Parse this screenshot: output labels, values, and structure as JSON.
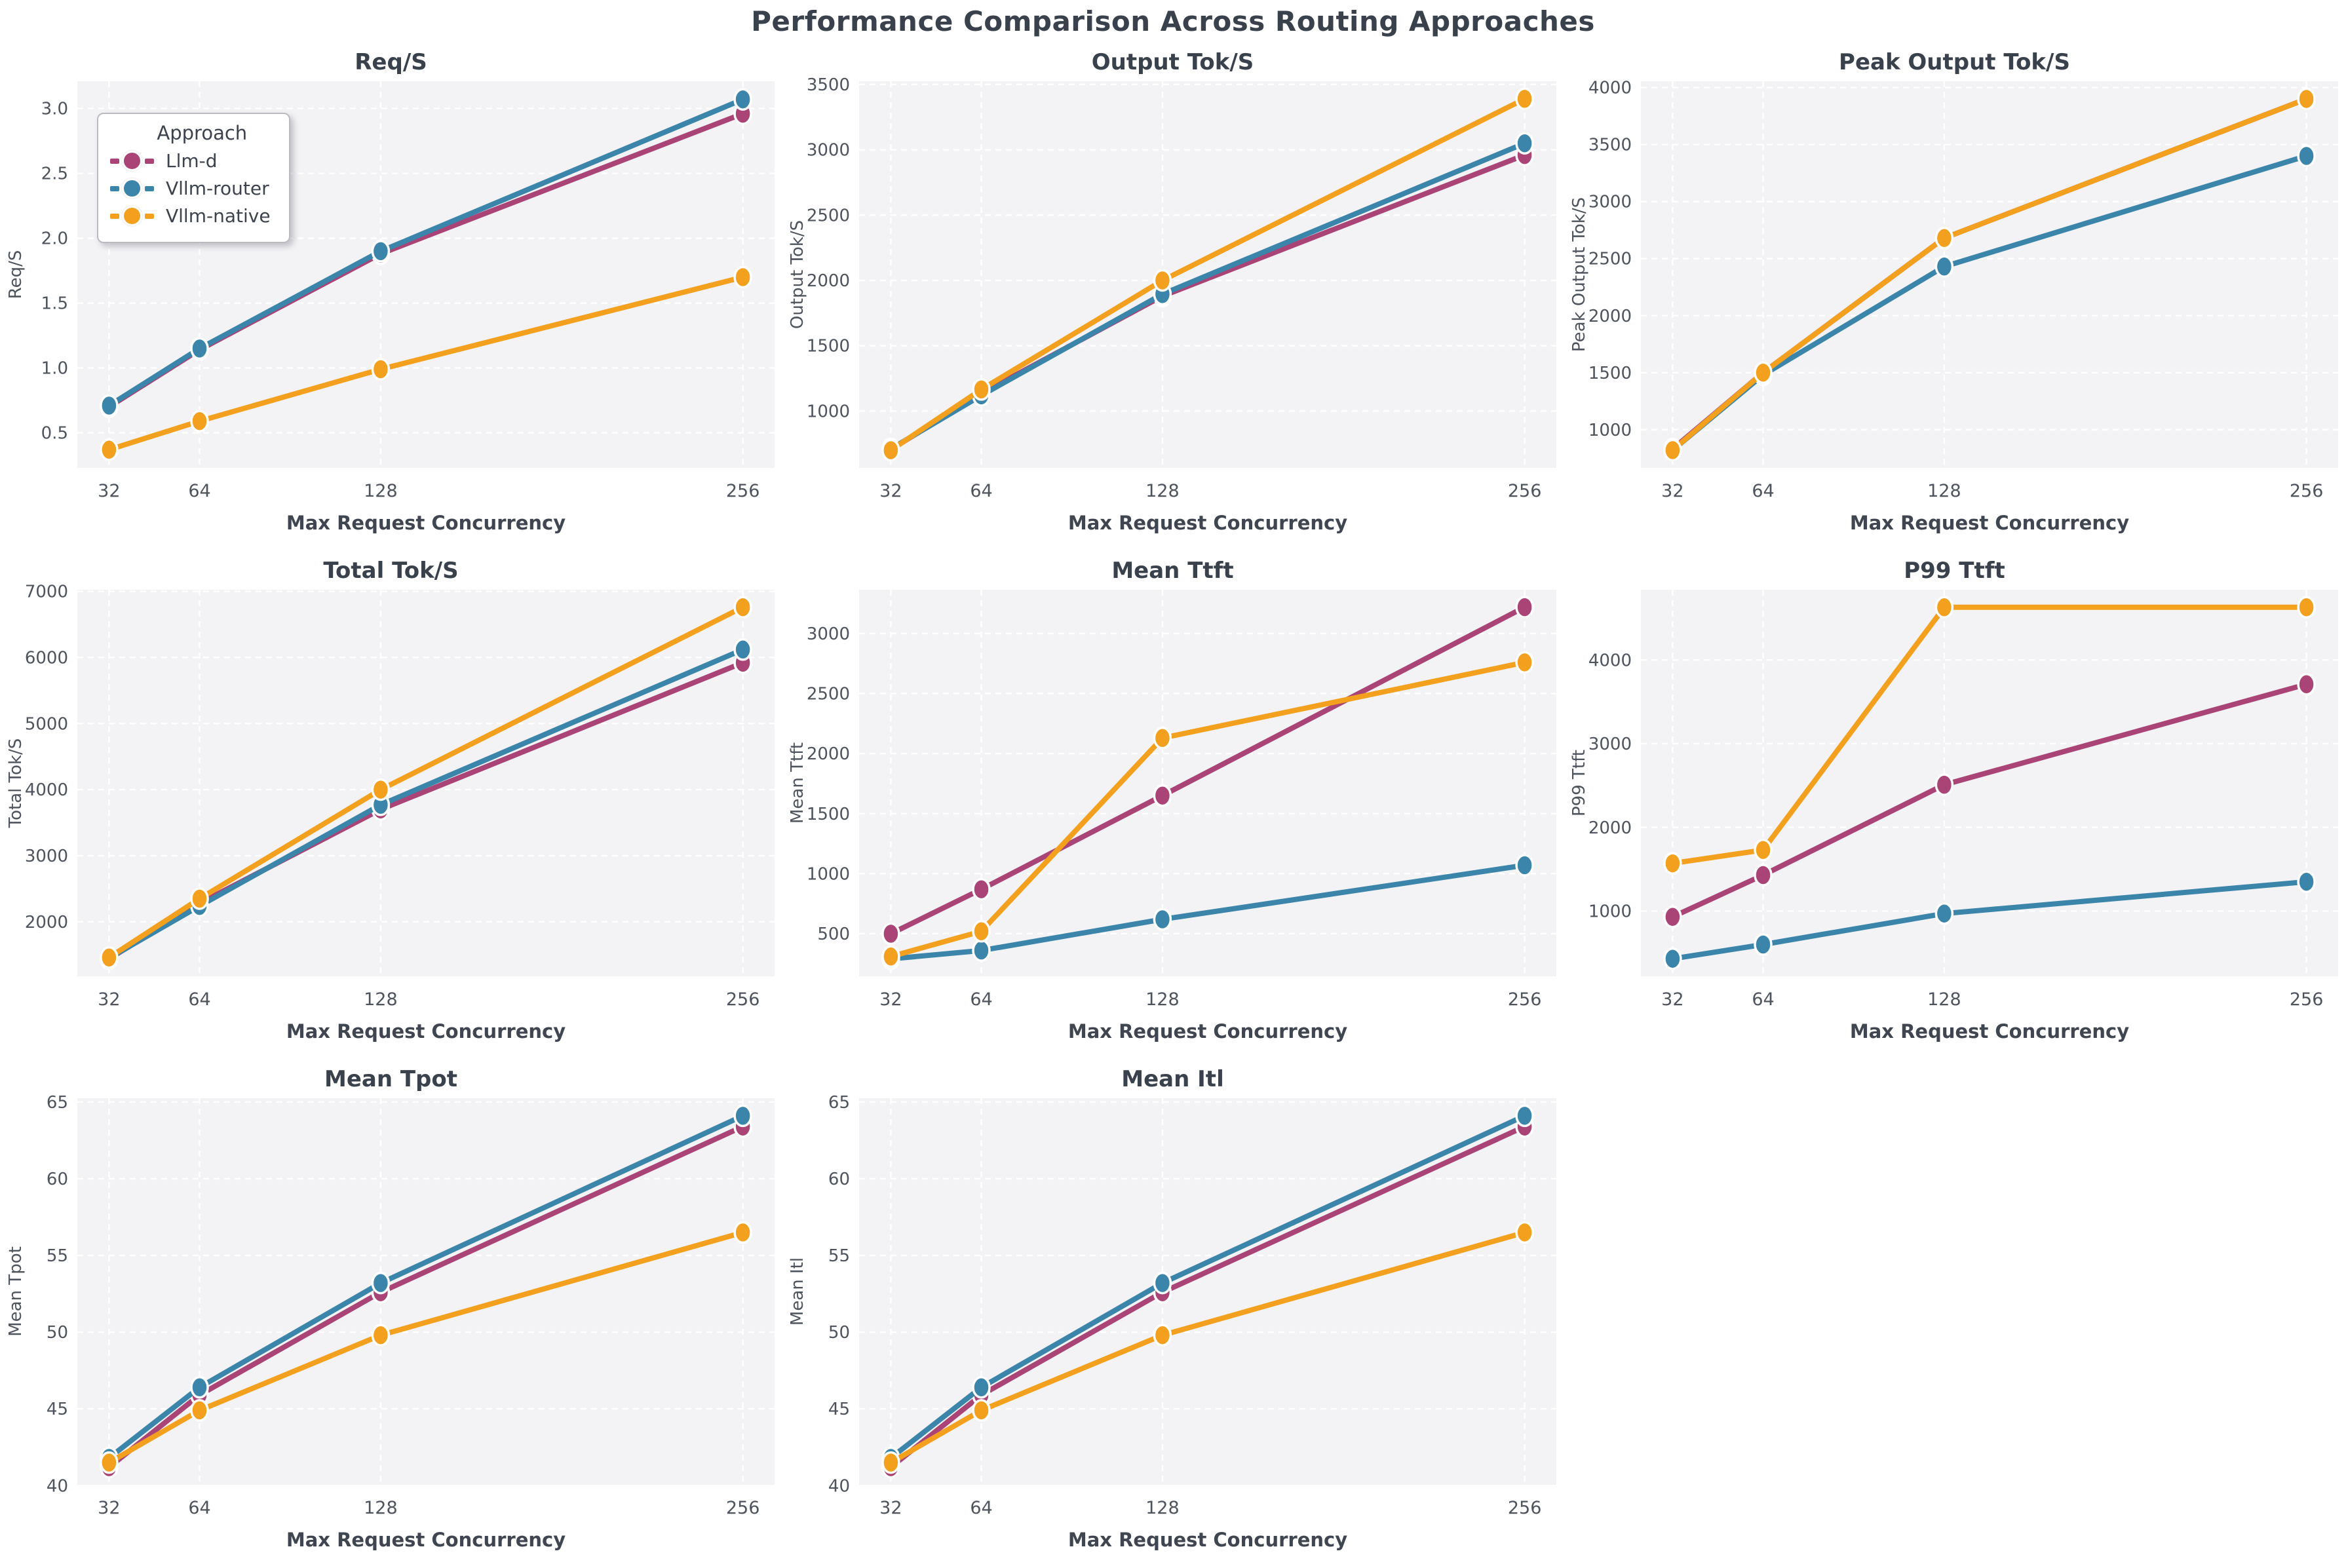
{
  "page": {
    "title": "Performance Comparison Across Routing Approaches"
  },
  "legend": {
    "title": "Approach",
    "entries": [
      {
        "name": "llm_d",
        "label": "Llm-d",
        "color": "#aa4477"
      },
      {
        "name": "vllm_router",
        "label": "Vllm-router",
        "color": "#3b85ab"
      },
      {
        "name": "vllm_native",
        "label": "Vllm-native",
        "color": "#f4a01f"
      }
    ]
  },
  "axes_shared": {
    "xlabel": "Max Request Concurrency",
    "x": [
      32,
      64,
      128,
      256
    ],
    "xtick_labels": [
      "32",
      "64",
      "128",
      "256"
    ],
    "xlim": [
      20.8,
      267.2
    ],
    "plot_bg": "#f3f3f5",
    "grid_color": "#ffffff"
  },
  "chart_data": [
    {
      "type": "line",
      "title": "Req/S",
      "ylabel": "Req/S",
      "xlabel": "Max Request Concurrency",
      "ylim": [
        0.23,
        3.21
      ],
      "yticks": [
        0.5,
        1.0,
        1.5,
        2.0,
        2.5,
        3.0
      ],
      "ytick_labels": [
        "0.5",
        "1.0",
        "1.5",
        "2.0",
        "2.5",
        "3.0"
      ],
      "series": [
        {
          "name": "llm_d",
          "values": [
            0.7,
            1.14,
            1.88,
            2.96
          ]
        },
        {
          "name": "vllm_router",
          "values": [
            0.71,
            1.15,
            1.9,
            3.07
          ]
        },
        {
          "name": "vllm_native",
          "values": [
            0.37,
            0.59,
            0.99,
            1.7
          ]
        }
      ],
      "has_legend": true
    },
    {
      "type": "line",
      "title": "Output Tok/S",
      "ylabel": "Output Tok/S",
      "xlabel": "Max Request Concurrency",
      "ylim": [
        565,
        3525
      ],
      "yticks": [
        1000,
        1500,
        2000,
        2500,
        3000,
        3500
      ],
      "series": [
        {
          "name": "llm_d",
          "values": [
            705,
            1135,
            1880,
            2960
          ]
        },
        {
          "name": "vllm_router",
          "values": [
            710,
            1120,
            1895,
            3050
          ]
        },
        {
          "name": "vllm_native",
          "values": [
            700,
            1165,
            2000,
            3390
          ]
        }
      ],
      "has_legend": false
    },
    {
      "type": "line",
      "title": "Peak Output Tok/S",
      "ylabel": "Peak Output Tok/S",
      "xlabel": "Max Request Concurrency",
      "ylim": [
        665,
        4055
      ],
      "yticks": [
        1000,
        1500,
        2000,
        2500,
        3000,
        3500,
        4000
      ],
      "series": [
        {
          "name": "llm_d",
          "values": [
            830,
            1500,
            2680,
            3900
          ]
        },
        {
          "name": "vllm_router",
          "values": [
            820,
            1480,
            2430,
            3400
          ]
        },
        {
          "name": "vllm_native",
          "values": [
            820,
            1500,
            2680,
            3900
          ]
        }
      ],
      "has_legend": false
    },
    {
      "type": "line",
      "title": "Total Tok/S",
      "ylabel": "Total Tok/S",
      "xlabel": "Max Request Concurrency",
      "ylim": [
        1175,
        7025
      ],
      "yticks": [
        2000,
        3000,
        4000,
        5000,
        6000,
        7000
      ],
      "series": [
        {
          "name": "llm_d",
          "values": [
            1440,
            2280,
            3700,
            5920
          ]
        },
        {
          "name": "vllm_router",
          "values": [
            1450,
            2240,
            3770,
            6120
          ]
        },
        {
          "name": "vllm_native",
          "values": [
            1460,
            2350,
            4000,
            6760
          ]
        }
      ],
      "has_legend": false
    },
    {
      "type": "line",
      "title": "Mean Ttft",
      "ylabel": "Mean Ttft",
      "xlabel": "Max Request Concurrency",
      "ylim": [
        145,
        3365
      ],
      "yticks": [
        500,
        1000,
        1500,
        2000,
        2500,
        3000
      ],
      "series": [
        {
          "name": "llm_d",
          "values": [
            500,
            870,
            1650,
            3220
          ]
        },
        {
          "name": "vllm_router",
          "values": [
            290,
            360,
            620,
            1070
          ]
        },
        {
          "name": "vllm_native",
          "values": [
            310,
            520,
            2130,
            2760
          ]
        }
      ],
      "has_legend": false
    },
    {
      "type": "line",
      "title": "P99 Ttft",
      "ylabel": "P99 Ttft",
      "xlabel": "Max Request Concurrency",
      "ylim": [
        220,
        4840
      ],
      "yticks": [
        1000,
        2000,
        3000,
        4000
      ],
      "series": [
        {
          "name": "llm_d",
          "values": [
            930,
            1430,
            2510,
            3710
          ]
        },
        {
          "name": "vllm_router",
          "values": [
            430,
            600,
            970,
            1350
          ]
        },
        {
          "name": "vllm_native",
          "values": [
            1570,
            1730,
            4630,
            4630
          ]
        }
      ],
      "has_legend": false
    },
    {
      "type": "line",
      "title": "Mean Tpot",
      "ylabel": "Mean Tpot",
      "xlabel": "Max Request Concurrency",
      "ylim": [
        40.05,
        65.25
      ],
      "yticks": [
        40,
        45,
        50,
        55,
        60,
        65
      ],
      "series": [
        {
          "name": "llm_d",
          "values": [
            41.2,
            45.9,
            52.6,
            63.4
          ]
        },
        {
          "name": "vllm_router",
          "values": [
            41.8,
            46.4,
            53.2,
            64.1
          ]
        },
        {
          "name": "vllm_native",
          "values": [
            41.5,
            44.9,
            49.8,
            56.5
          ]
        }
      ],
      "has_legend": false
    },
    {
      "type": "line",
      "title": "Mean Itl",
      "ylabel": "Mean Itl",
      "xlabel": "Max Request Concurrency",
      "ylim": [
        40.05,
        65.25
      ],
      "yticks": [
        40,
        45,
        50,
        55,
        60,
        65
      ],
      "series": [
        {
          "name": "llm_d",
          "values": [
            41.2,
            45.9,
            52.6,
            63.4
          ]
        },
        {
          "name": "vllm_router",
          "values": [
            41.8,
            46.4,
            53.2,
            64.1
          ]
        },
        {
          "name": "vllm_native",
          "values": [
            41.5,
            44.9,
            49.8,
            56.5
          ]
        }
      ],
      "has_legend": false
    }
  ]
}
